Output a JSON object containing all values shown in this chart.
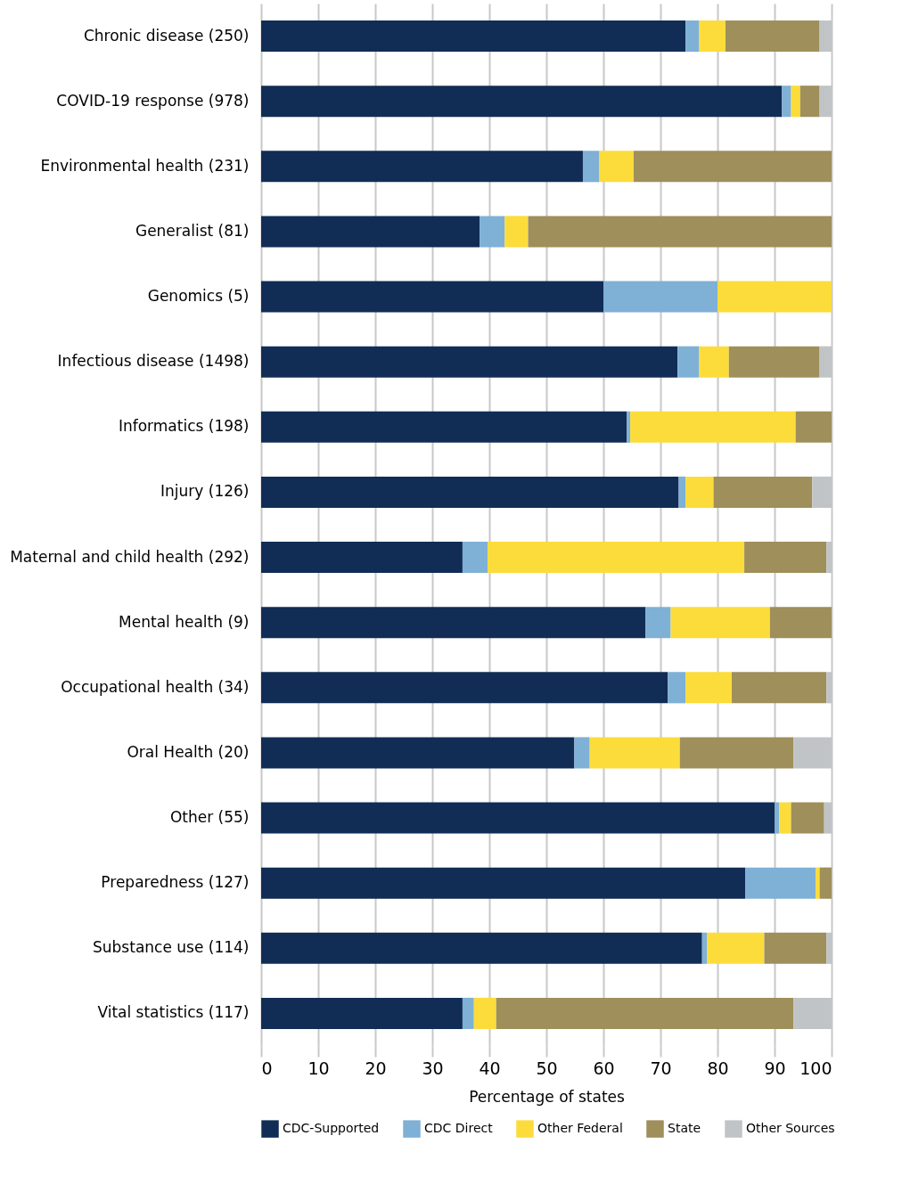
{
  "chart_data": {
    "type": "bar",
    "orientation": "horizontal",
    "stacked": true,
    "xlabel": "Percentage of states",
    "categories": [
      "Chronic disease (250)",
      "COVID-19 response (978)",
      "Environmental health (231)",
      "Generalist (81)",
      "Genomics (5)",
      "Infectious disease (1498)",
      "Informatics (198)",
      "Injury (126)",
      "Maternal and child health (292)",
      "Mental health (9)",
      "Occupational health (34)",
      "Oral Health (20)",
      "Other (55)",
      "Preparedness (127)",
      "Substance use (114)",
      "Vital statistics (117)"
    ],
    "series": [
      {
        "name": "CDC-Supported",
        "color": "#112d55",
        "values": [
          74.4,
          91.3,
          56.4,
          38.3,
          60,
          73.0,
          64.1,
          73.2,
          35.3,
          67.4,
          71.3,
          54.9,
          90.0,
          84.9,
          77.3,
          35.3
        ]
      },
      {
        "name": "CDC Direct",
        "color": "#7fb0d6",
        "values": [
          2.4,
          1.6,
          2.9,
          4.4,
          20,
          3.8,
          0.6,
          1.2,
          4.4,
          4.4,
          3.1,
          2.7,
          0.8,
          12.3,
          0.9,
          2.0
        ]
      },
      {
        "name": "Other Federal",
        "color": "#fcdc3a",
        "values": [
          4.6,
          1.6,
          6.0,
          4.1,
          20,
          5.2,
          29.0,
          4.9,
          45.0,
          17.4,
          8.1,
          15.8,
          2.1,
          0.7,
          10.0,
          3.9
        ]
      },
      {
        "name": "State",
        "color": "#9e8f5b",
        "values": [
          16.5,
          3.4,
          34.7,
          53.2,
          0,
          15.9,
          6.3,
          17.3,
          14.4,
          10.8,
          16.6,
          19.9,
          5.8,
          2.1,
          10.9,
          52.1
        ]
      },
      {
        "name": "Other Sources",
        "color": "#c1c4c7",
        "values": [
          2.1,
          2.1,
          0,
          0,
          0,
          2.1,
          0,
          3.4,
          0.9,
          0,
          0.9,
          6.7,
          1.3,
          0,
          0.9,
          6.7
        ]
      }
    ],
    "xlim": [
      0,
      100
    ],
    "xticks": [
      0,
      10,
      20,
      30,
      40,
      50,
      60,
      70,
      80,
      90,
      100
    ],
    "grid": "x",
    "legend": "bottom"
  }
}
